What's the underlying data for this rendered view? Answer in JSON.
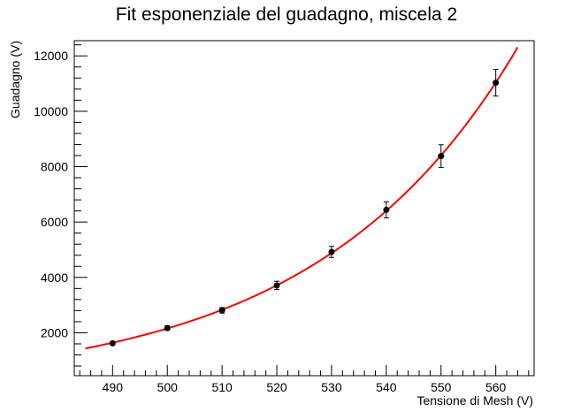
{
  "chart_data": {
    "type": "scatter",
    "title": "Fit esponenziale del guadagno, miscela 2",
    "xlabel": "Tensione di Mesh (V)",
    "ylabel": "Guadagno (V)",
    "xlim": [
      483,
      567
    ],
    "ylim": [
      450,
      12550
    ],
    "x_ticks": [
      490,
      500,
      510,
      520,
      530,
      540,
      550,
      560
    ],
    "x_tick_labels": [
      "490",
      "500",
      "510",
      "520",
      "530",
      "540",
      "550",
      "560"
    ],
    "y_ticks": [
      2000,
      4000,
      6000,
      8000,
      10000,
      12000
    ],
    "y_tick_labels": [
      "2000",
      "4000",
      "6000",
      "8000",
      "10000",
      "12000"
    ],
    "grid": false,
    "points": [
      {
        "x": 490,
        "y": 1620,
        "err": 60
      },
      {
        "x": 500,
        "y": 2170,
        "err": 80
      },
      {
        "x": 510,
        "y": 2810,
        "err": 100
      },
      {
        "x": 520,
        "y": 3710,
        "err": 150
      },
      {
        "x": 530,
        "y": 4920,
        "err": 200
      },
      {
        "x": 540,
        "y": 6440,
        "err": 290
      },
      {
        "x": 550,
        "y": 8380,
        "err": 410
      },
      {
        "x": 560,
        "y": 11030,
        "err": 480
      }
    ],
    "fit": {
      "type": "exponential",
      "x_range": [
        485,
        564
      ],
      "y_at_start": 1433,
      "y_at_end": 12310,
      "color": "#ff0000"
    },
    "marker_color": "#000000"
  }
}
